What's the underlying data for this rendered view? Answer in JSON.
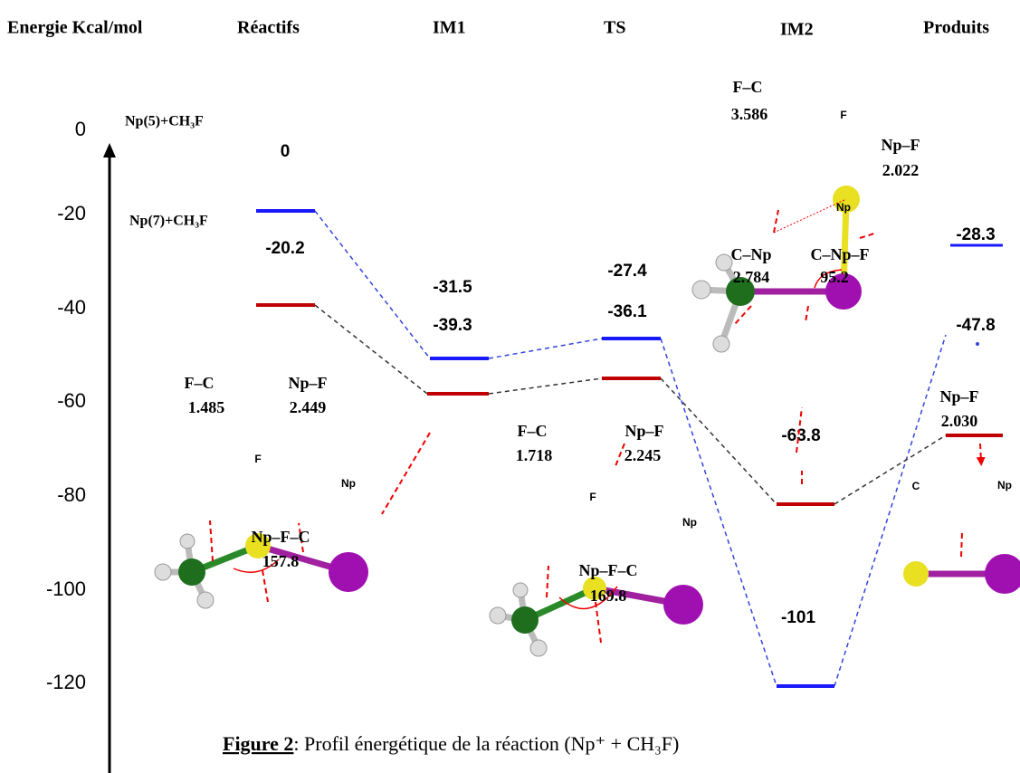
{
  "header": {
    "axis_label": "Energie Kcal/mol",
    "columns": [
      "Réactifs",
      "IM1",
      "TS",
      "IM2",
      "Produits"
    ]
  },
  "axis": {
    "ticks": [
      "0",
      "-20",
      "-40",
      "-60",
      "-80",
      "-100",
      "-120"
    ]
  },
  "species": [
    "Np(5)+CH₃F",
    "Np(7)+CH₃F"
  ],
  "energies": [
    "0",
    "-20.2",
    "-31.5",
    "-39.3",
    "-27.4",
    "-36.1",
    "-63.8",
    "-101",
    "-47.8",
    "-28.3"
  ],
  "labels": [
    "F–C",
    "1.485",
    "Np–F",
    "2.449",
    "F",
    "Np",
    "Np–F–C",
    "157.8",
    "F–C",
    "1.718",
    "Np–F",
    "2.245",
    "F",
    "Np",
    "Np–F–C",
    "169.8",
    "F–C",
    "3.586",
    "F",
    "Np–F",
    "2.022",
    "Np",
    "C–Np",
    "2.784",
    "C–Np–F",
    "95.2",
    "Np–F",
    "2.030",
    "C",
    "Np"
  ],
  "caption": {
    "figure": "Figure 2",
    "text": ": Profil énergétique de la réaction (Np⁺ + CH₃F)"
  }
}
